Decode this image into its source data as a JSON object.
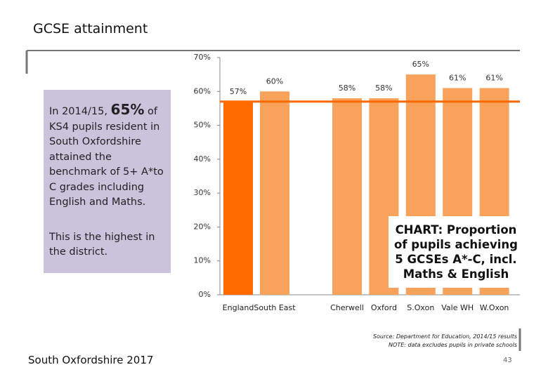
{
  "header": {
    "title": "GCSE attainment"
  },
  "panel": {
    "text_before": "In 2014/15, ",
    "highlight": "65%",
    "text_after": " of KS4 pupils resident in South Oxfordshire attained the benchmark of 5+ A*to C grades including English and Maths.",
    "note": "This is the highest in the district."
  },
  "chart_data": {
    "type": "bar",
    "categories": [
      "England",
      "South East",
      "Cherwell",
      "Oxford",
      "S.Oxon",
      "Vale WH",
      "W.Oxon"
    ],
    "values": [
      57,
      60,
      58,
      58,
      65,
      61,
      61
    ],
    "value_labels": [
      "57%",
      "60%",
      "58%",
      "58%",
      "65%",
      "61%",
      "61%"
    ],
    "colors": [
      "#ff6a00",
      "#f9a25c",
      "#f9a25c",
      "#f9a25c",
      "#f9a25c",
      "#f9a25c",
      "#f9a25c"
    ],
    "ylim": [
      0,
      70
    ],
    "yticks": [
      {
        "value": 0,
        "label": "0%"
      },
      {
        "value": 10,
        "label": "10%"
      },
      {
        "value": 20,
        "label": "20%"
      },
      {
        "value": 30,
        "label": "30%"
      },
      {
        "value": 40,
        "label": "40%"
      },
      {
        "value": 50,
        "label": "50%"
      },
      {
        "value": 60,
        "label": "60%"
      },
      {
        "value": 70,
        "label": "70%"
      }
    ],
    "annotation": "CHART: Proportion of pupils achieving 5 GCSEs A*-C, incl. Maths & English"
  },
  "footer": {
    "source": "Source: Department for Education, 2014/15 results",
    "note": "NOTE: data excludes pupils in private schools",
    "left": "South Oxfordshire  2017",
    "page": 43
  }
}
